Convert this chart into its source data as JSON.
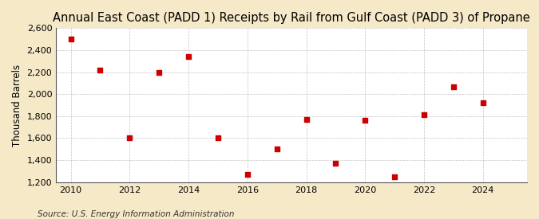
{
  "title": "Annual East Coast (PADD 1) Receipts by Rail from Gulf Coast (PADD 3) of Propane",
  "ylabel": "Thousand Barrels",
  "source": "Source: U.S. Energy Information Administration",
  "years": [
    2010,
    2011,
    2012,
    2013,
    2014,
    2015,
    2016,
    2017,
    2018,
    2019,
    2020,
    2021,
    2022,
    2023,
    2024
  ],
  "values": [
    2500,
    2220,
    1600,
    2195,
    2345,
    1605,
    1270,
    1500,
    1770,
    1370,
    1760,
    1250,
    1810,
    2065,
    1920
  ],
  "ylim": [
    1200,
    2600
  ],
  "yticks": [
    1200,
    1400,
    1600,
    1800,
    2000,
    2200,
    2400,
    2600
  ],
  "xlim": [
    2009.5,
    2025.5
  ],
  "xticks": [
    2010,
    2012,
    2014,
    2016,
    2018,
    2020,
    2022,
    2024
  ],
  "marker_color": "#cc0000",
  "marker": "s",
  "marker_size": 4,
  "figure_background_color": "#f5e9c8",
  "plot_background_color": "#ffffff",
  "grid_color": "#aaaaaa",
  "title_fontsize": 10.5,
  "axis_label_fontsize": 8.5,
  "tick_fontsize": 8,
  "source_fontsize": 7.5
}
